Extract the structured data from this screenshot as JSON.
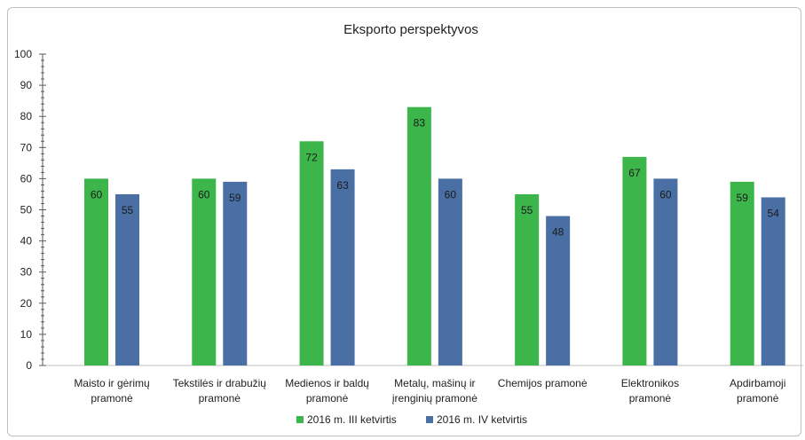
{
  "chart_data": {
    "type": "bar",
    "title": "Eksporto perspektyvos",
    "xlabel": "",
    "ylabel": "",
    "ylim": [
      0,
      100
    ],
    "yticks": [
      0,
      10,
      20,
      30,
      40,
      50,
      60,
      70,
      80,
      90,
      100
    ],
    "categories": [
      [
        "Maisto ir gėrimų",
        "pramonė"
      ],
      [
        "Tekstilės ir drabužių",
        "pramonė"
      ],
      [
        "Medienos ir baldų",
        "pramonė"
      ],
      [
        "Metalų, mašinų ir",
        "įrenginių pramonė"
      ],
      [
        "Chemijos pramonė"
      ],
      [
        "Elektronikos",
        "pramonė"
      ],
      [
        "Apdirbamoji",
        "pramonė"
      ]
    ],
    "series": [
      {
        "name": "2016 m. III ketvirtis",
        "color": "#3cb54a",
        "values": [
          60,
          60,
          72,
          83,
          55,
          67,
          59
        ]
      },
      {
        "name": "2016 m. IV ketvirtis",
        "color": "#4a6fa5",
        "values": [
          55,
          59,
          63,
          60,
          48,
          60,
          54
        ]
      }
    ],
    "grid": false,
    "data_labels": true,
    "legend_position": "bottom"
  }
}
